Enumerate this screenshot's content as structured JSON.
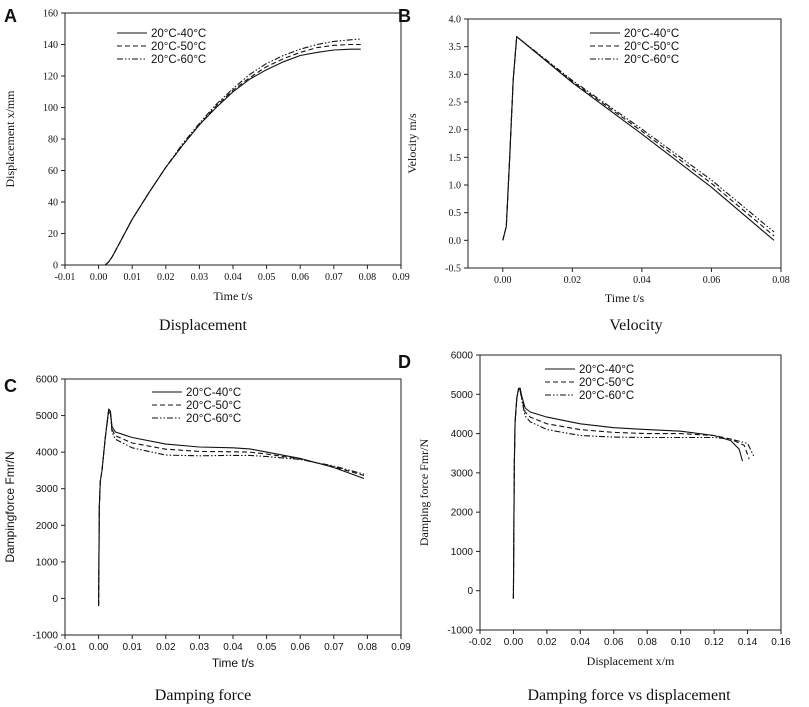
{
  "figure": {
    "colors": {
      "line": "#111111",
      "axis": "#222222",
      "background": "#ffffff"
    }
  },
  "chart_data": [
    {
      "panel_letter": "A",
      "caption": "Displacement",
      "type": "line",
      "xlabel": "Time t/s",
      "ylabel": "Displacement x/mm",
      "xlim": [
        -0.01,
        0.09
      ],
      "ylim": [
        0,
        160
      ],
      "xticks": [
        -0.01,
        0,
        0.01,
        0.02,
        0.03,
        0.04,
        0.05,
        0.06,
        0.07,
        0.08,
        0.09
      ],
      "xtick_labels": [
        "-0.01",
        "0.00",
        "0.01",
        "0.02",
        "0.03",
        "0.04",
        "0.05",
        "0.06",
        "0.07",
        "0.08",
        "0.09"
      ],
      "yticks": [
        0,
        20,
        40,
        60,
        80,
        100,
        120,
        140,
        160
      ],
      "ytick_labels": [
        "0",
        "20",
        "40",
        "60",
        "80",
        "100",
        "120",
        "140",
        "160"
      ],
      "legend": {
        "placement": "top-left"
      },
      "series": [
        {
          "name": "20°C-40°C",
          "style": "solid",
          "x": [
            0.002,
            0.003,
            0.004,
            0.006,
            0.008,
            0.01,
            0.015,
            0.02,
            0.025,
            0.03,
            0.035,
            0.04,
            0.045,
            0.05,
            0.055,
            0.06,
            0.065,
            0.07,
            0.075,
            0.078
          ],
          "y": [
            0,
            2,
            5,
            13,
            21,
            29,
            46,
            62,
            76,
            89,
            100,
            110,
            118,
            124,
            129,
            133,
            135,
            136.5,
            137,
            137
          ]
        },
        {
          "name": "20°C-50°C",
          "style": "dashed",
          "x": [
            0.002,
            0.003,
            0.004,
            0.006,
            0.008,
            0.01,
            0.015,
            0.02,
            0.025,
            0.03,
            0.035,
            0.04,
            0.045,
            0.05,
            0.055,
            0.06,
            0.065,
            0.07,
            0.075,
            0.078
          ],
          "y": [
            0,
            2,
            5,
            13,
            21,
            29,
            46,
            62,
            76,
            89,
            101,
            111,
            119,
            126,
            131,
            135,
            138,
            139.5,
            140,
            140
          ]
        },
        {
          "name": "20°C-60°C",
          "style": "dashdotdot",
          "x": [
            0.002,
            0.003,
            0.004,
            0.006,
            0.008,
            0.01,
            0.015,
            0.02,
            0.025,
            0.03,
            0.035,
            0.04,
            0.045,
            0.05,
            0.055,
            0.06,
            0.065,
            0.07,
            0.075,
            0.078
          ],
          "y": [
            0,
            2,
            5,
            13,
            21,
            29,
            46,
            62,
            77,
            90,
            102,
            112,
            121,
            128,
            133,
            137,
            140,
            142,
            143,
            143.5
          ]
        }
      ]
    },
    {
      "panel_letter": "B",
      "caption": "Velocity",
      "type": "line",
      "xlabel": "Time t/s",
      "ylabel": "Velocity m/s",
      "xlim": [
        -0.01,
        0.08
      ],
      "ylim": [
        -0.5,
        4.0
      ],
      "xticks": [
        0,
        0.02,
        0.04,
        0.06,
        0.08
      ],
      "xtick_labels": [
        "0.00",
        "0.02",
        "0.04",
        "0.06",
        "0.08"
      ],
      "yticks": [
        -0.5,
        0,
        0.5,
        1.0,
        1.5,
        2.0,
        2.5,
        3.0,
        3.5,
        4.0
      ],
      "ytick_labels": [
        "-0.5",
        "0.0",
        "0.5",
        "1.0",
        "1.5",
        "2.0",
        "2.5",
        "3.0",
        "3.5",
        "4.0"
      ],
      "legend": {
        "placement": "top-right"
      },
      "series": [
        {
          "name": "20°C-40°C",
          "style": "solid",
          "x": [
            0,
            0.001,
            0.002,
            0.003,
            0.004,
            0.02,
            0.04,
            0.06,
            0.078
          ],
          "y": [
            0,
            0.25,
            1.5,
            2.9,
            3.68,
            2.85,
            1.92,
            0.96,
            0.0
          ]
        },
        {
          "name": "20°C-50°C",
          "style": "dashed",
          "x": [
            0,
            0.001,
            0.002,
            0.003,
            0.004,
            0.02,
            0.04,
            0.06,
            0.078
          ],
          "y": [
            0,
            0.25,
            1.5,
            2.9,
            3.68,
            2.87,
            1.97,
            1.03,
            0.08
          ]
        },
        {
          "name": "20°C-60°C",
          "style": "dashdotdot",
          "x": [
            0,
            0.001,
            0.002,
            0.003,
            0.004,
            0.02,
            0.04,
            0.06,
            0.078
          ],
          "y": [
            0,
            0.25,
            1.5,
            2.9,
            3.68,
            2.89,
            2.01,
            1.09,
            0.15
          ]
        }
      ]
    },
    {
      "panel_letter": "C",
      "caption": "Damping force",
      "type": "line",
      "xlabel": "Time t/s",
      "ylabel": "Dampingforce Fmr/N",
      "xlim": [
        -0.01,
        0.09
      ],
      "ylim": [
        -1000,
        6000
      ],
      "xticks": [
        -0.01,
        0,
        0.01,
        0.02,
        0.03,
        0.04,
        0.05,
        0.06,
        0.07,
        0.08,
        0.09
      ],
      "xtick_labels": [
        "-0.01",
        "0.00",
        "0.01",
        "0.02",
        "0.03",
        "0.04",
        "0.05",
        "0.06",
        "0.07",
        "0.08",
        "0.09"
      ],
      "yticks": [
        -1000,
        0,
        1000,
        2000,
        3000,
        4000,
        5000,
        6000
      ],
      "ytick_labels": [
        "-1000",
        "0",
        "1000",
        "2000",
        "3000",
        "4000",
        "5000",
        "6000"
      ],
      "legend": {
        "placement": "top-right"
      },
      "series": [
        {
          "name": "20°C-40°C",
          "style": "solid",
          "x": [
            0,
            0.0002,
            0.0005,
            0.001,
            0.002,
            0.003,
            0.0035,
            0.004,
            0.005,
            0.01,
            0.02,
            0.03,
            0.04,
            0.045,
            0.05,
            0.06,
            0.07,
            0.079
          ],
          "y": [
            -200,
            2500,
            3200,
            3500,
            4400,
            5180,
            5120,
            4700,
            4550,
            4400,
            4220,
            4140,
            4120,
            4090,
            4000,
            3830,
            3580,
            3280
          ]
        },
        {
          "name": "20°C-50°C",
          "style": "dashed",
          "x": [
            0,
            0.0002,
            0.0005,
            0.001,
            0.002,
            0.003,
            0.0035,
            0.004,
            0.005,
            0.01,
            0.02,
            0.03,
            0.04,
            0.045,
            0.05,
            0.06,
            0.07,
            0.079
          ],
          "y": [
            -200,
            2500,
            3200,
            3500,
            4400,
            5150,
            5080,
            4620,
            4450,
            4250,
            4080,
            4020,
            4010,
            4000,
            3950,
            3810,
            3600,
            3360
          ]
        },
        {
          "name": "20°C-60°C",
          "style": "dashdotdot",
          "x": [
            0,
            0.0002,
            0.0005,
            0.001,
            0.002,
            0.003,
            0.0035,
            0.004,
            0.005,
            0.01,
            0.02,
            0.03,
            0.04,
            0.045,
            0.05,
            0.06,
            0.07,
            0.079
          ],
          "y": [
            -200,
            2500,
            3200,
            3500,
            4400,
            5120,
            5050,
            4550,
            4350,
            4120,
            3920,
            3900,
            3910,
            3910,
            3880,
            3800,
            3620,
            3400
          ]
        }
      ]
    },
    {
      "panel_letter": "D",
      "caption": "Damping force vs displacement",
      "type": "line",
      "xlabel": "Displacement x/m",
      "ylabel": "Damping force Fmr/N",
      "xlim": [
        -0.02,
        0.16
      ],
      "ylim": [
        -1000,
        6000
      ],
      "xticks": [
        -0.02,
        0,
        0.02,
        0.04,
        0.06,
        0.08,
        0.1,
        0.12,
        0.14,
        0.16
      ],
      "xtick_labels": [
        "-0.02",
        "0.00",
        "0.02",
        "0.04",
        "0.06",
        "0.08",
        "0.10",
        "0.12",
        "0.14",
        "0.16"
      ],
      "yticks": [
        -1000,
        0,
        1000,
        2000,
        3000,
        4000,
        5000,
        6000
      ],
      "ytick_labels": [
        "-1000",
        "0",
        "1000",
        "2000",
        "3000",
        "4000",
        "5000",
        "6000"
      ],
      "legend": {
        "placement": "top-left"
      },
      "series": [
        {
          "name": "20°C-40°C",
          "style": "solid",
          "x": [
            0,
            0.0005,
            0.001,
            0.002,
            0.003,
            0.004,
            0.005,
            0.007,
            0.01,
            0.02,
            0.04,
            0.06,
            0.08,
            0.1,
            0.12,
            0.13,
            0.135,
            0.137
          ],
          "y": [
            -200,
            3200,
            4300,
            4900,
            5150,
            5160,
            4950,
            4650,
            4550,
            4420,
            4250,
            4150,
            4100,
            4060,
            3950,
            3820,
            3600,
            3300
          ]
        },
        {
          "name": "20°C-50°C",
          "style": "dashed",
          "x": [
            0,
            0.0005,
            0.001,
            0.002,
            0.003,
            0.004,
            0.005,
            0.007,
            0.01,
            0.02,
            0.04,
            0.06,
            0.08,
            0.1,
            0.12,
            0.13,
            0.138,
            0.141
          ],
          "y": [
            -200,
            3200,
            4300,
            4900,
            5120,
            5130,
            4900,
            4550,
            4420,
            4250,
            4100,
            4030,
            4000,
            4000,
            3950,
            3860,
            3700,
            3350
          ]
        },
        {
          "name": "20°C-60°C",
          "style": "dashdotdot",
          "x": [
            0,
            0.0005,
            0.001,
            0.002,
            0.003,
            0.004,
            0.005,
            0.007,
            0.01,
            0.02,
            0.04,
            0.06,
            0.08,
            0.1,
            0.12,
            0.13,
            0.14,
            0.144
          ],
          "y": [
            -200,
            3200,
            4300,
            4900,
            5100,
            5100,
            4850,
            4450,
            4300,
            4100,
            3950,
            3910,
            3900,
            3900,
            3900,
            3860,
            3750,
            3400
          ]
        }
      ]
    }
  ]
}
